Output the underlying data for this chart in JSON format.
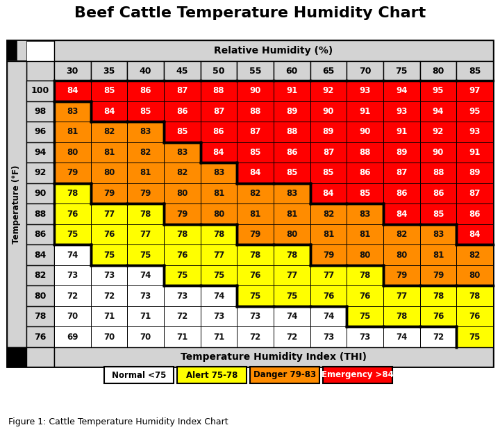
{
  "title": "Beef Cattle Temperature Humidity Chart",
  "figure_caption": "Figure 1: Cattle Temperature Humidity Index Chart",
  "humidity_header": "Relative Humidity (%)",
  "thi_footer": "Temperature Humidity Index (THI)",
  "humidity_values": [
    30,
    35,
    40,
    45,
    50,
    55,
    60,
    65,
    70,
    75,
    80,
    85
  ],
  "temp_values": [
    100,
    98,
    96,
    94,
    92,
    90,
    88,
    86,
    84,
    82,
    80,
    78,
    76
  ],
  "thi_data": [
    [
      84,
      85,
      86,
      87,
      88,
      90,
      91,
      92,
      93,
      94,
      95,
      97
    ],
    [
      83,
      84,
      85,
      86,
      87,
      88,
      89,
      90,
      91,
      93,
      94,
      95
    ],
    [
      81,
      82,
      83,
      85,
      86,
      87,
      88,
      89,
      90,
      91,
      92,
      93
    ],
    [
      80,
      81,
      82,
      83,
      84,
      85,
      86,
      87,
      88,
      89,
      90,
      91
    ],
    [
      79,
      80,
      81,
      82,
      83,
      84,
      85,
      85,
      86,
      87,
      88,
      89
    ],
    [
      78,
      79,
      79,
      80,
      81,
      82,
      83,
      84,
      85,
      86,
      86,
      87
    ],
    [
      76,
      77,
      78,
      79,
      80,
      81,
      81,
      82,
      83,
      84,
      85,
      86
    ],
    [
      75,
      76,
      77,
      78,
      78,
      79,
      80,
      81,
      81,
      82,
      83,
      84
    ],
    [
      74,
      75,
      75,
      76,
      77,
      78,
      78,
      79,
      80,
      80,
      81,
      82
    ],
    [
      73,
      73,
      74,
      75,
      75,
      76,
      77,
      77,
      78,
      79,
      79,
      80
    ],
    [
      72,
      72,
      73,
      73,
      74,
      75,
      75,
      76,
      76,
      77,
      78,
      78
    ],
    [
      70,
      71,
      71,
      72,
      73,
      73,
      74,
      74,
      75,
      78,
      76,
      76
    ],
    [
      69,
      70,
      70,
      71,
      71,
      72,
      72,
      73,
      73,
      74,
      72,
      75
    ]
  ],
  "color_normal": "#ffffff",
  "color_alert": "#ffff00",
  "color_danger": "#ff8c00",
  "color_emergency": "#ff0000",
  "color_header_bg": "#d3d3d3",
  "color_border": "#000000",
  "legend_labels": [
    "Normal <75",
    "Alert 75-78",
    "Danger 79-83",
    "Emergency >84"
  ],
  "legend_colors": [
    "#ffffff",
    "#ffff00",
    "#ff8c00",
    "#ff0000"
  ],
  "legend_text_colors": [
    "black",
    "black",
    "black",
    "white"
  ]
}
